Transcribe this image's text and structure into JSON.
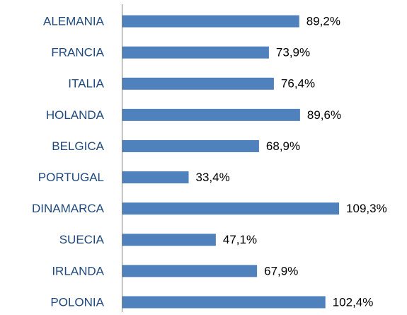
{
  "chart_data": {
    "type": "bar",
    "orientation": "horizontal",
    "categories": [
      "ALEMANIA",
      "FRANCIA",
      "ITALIA",
      "HOLANDA",
      "BELGICA",
      "PORTUGAL",
      "DINAMARCA",
      "SUECIA",
      "IRLANDA",
      "POLONIA"
    ],
    "values": [
      89.2,
      73.9,
      76.4,
      89.6,
      68.9,
      33.4,
      109.3,
      47.1,
      67.9,
      102.4
    ],
    "value_labels": [
      "89,2%",
      "73,9%",
      "76,4%",
      "89,6%",
      "68,9%",
      "33,4%",
      "109,3%",
      "47,1%",
      "67,9%",
      "102,4%"
    ],
    "color": "#4f81bd"
  }
}
